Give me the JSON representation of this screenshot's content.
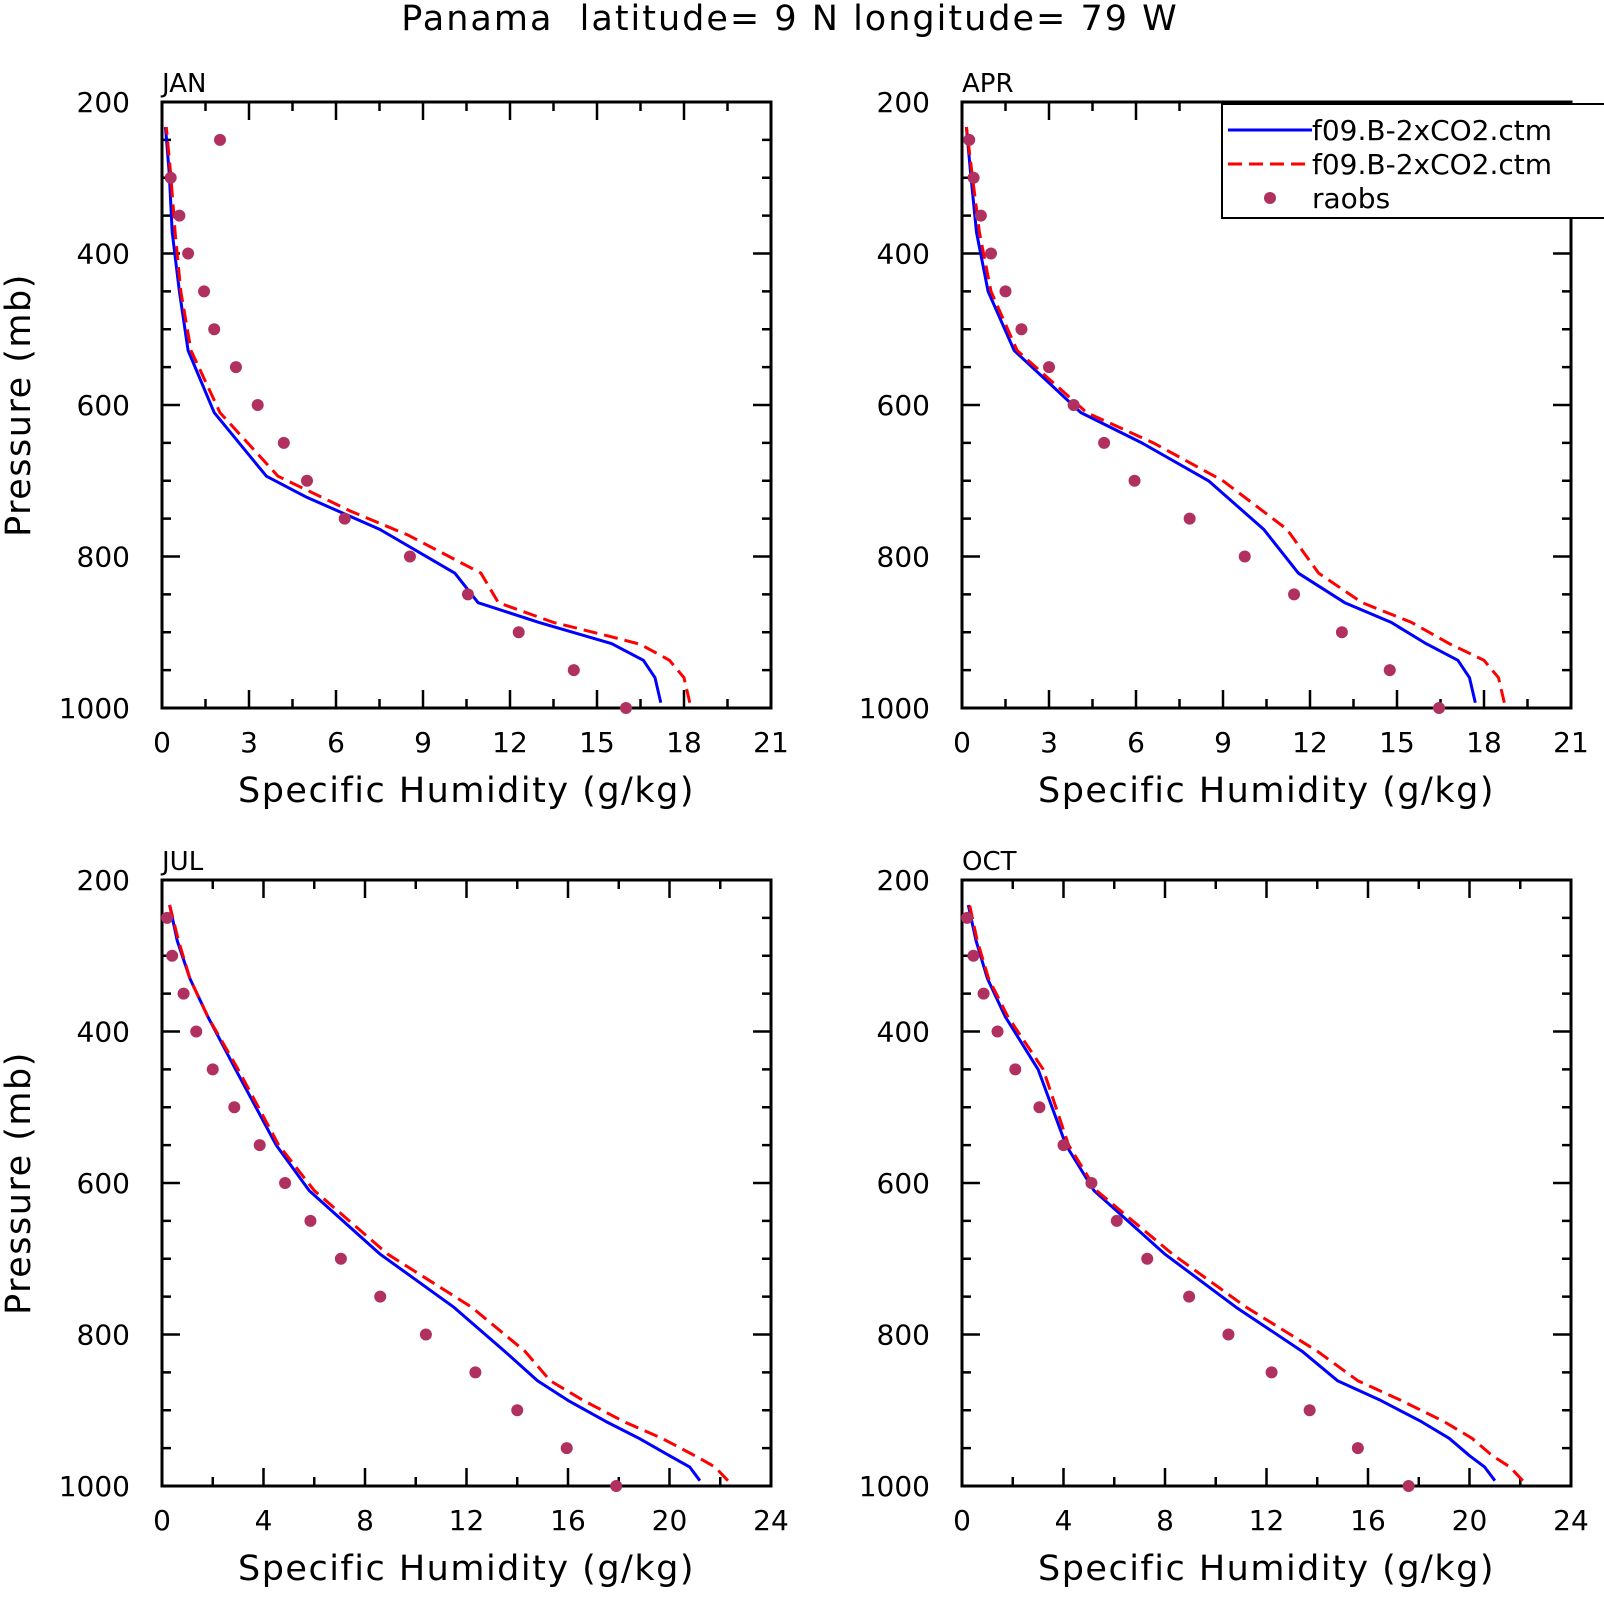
{
  "figure_title": "Panama  latitude= 9 N longitude= 79 W",
  "legend": {
    "entries": [
      {
        "label": "f09.B-2xCO2.ctm",
        "color": "#0000ff",
        "style": "solid"
      },
      {
        "label": "f09.B-2xCO2.ctm",
        "color": "#ff0000",
        "style": "dashed"
      },
      {
        "label": "raobs",
        "color": "#b03060",
        "style": "marker"
      }
    ],
    "placement": "top-right of APR panel"
  },
  "chart_data": [
    {
      "type": "line",
      "title": "JAN",
      "xlabel": "Specific Humidity (g/kg)",
      "ylabel": "Pressure (mb)",
      "xlim": [
        0,
        21
      ],
      "ylim": [
        1000,
        200
      ],
      "xticks": [
        0,
        3,
        6,
        9,
        12,
        15,
        18,
        21
      ],
      "yticks": [
        200,
        400,
        600,
        800,
        1000
      ],
      "series": [
        {
          "color": "#0000ff",
          "style": "solid",
          "x": [
            17.2,
            17.0,
            16.6,
            15.5,
            13.0,
            10.9,
            10.1,
            7.5,
            5.0,
            3.6,
            1.8,
            0.9,
            0.6,
            0.35,
            0.25,
            0.12
          ],
          "y": [
            993,
            960,
            937,
            915,
            887,
            861,
            822,
            764,
            722,
            694,
            610,
            528,
            450,
            372,
            295,
            233
          ]
        },
        {
          "color": "#ff0000",
          "style": "dashed",
          "x": [
            18.2,
            18.0,
            17.5,
            16.5,
            15.5,
            13.5,
            11.6,
            11.0,
            8.5,
            6.5,
            4.0,
            2.0,
            1.0,
            0.65,
            0.45,
            0.3,
            0.15
          ],
          "y": [
            993,
            960,
            937,
            916,
            906,
            887,
            861,
            822,
            772,
            740,
            694,
            610,
            528,
            450,
            372,
            295,
            233
          ]
        },
        {
          "color": "#b03060",
          "style": "marker",
          "x": [
            2.0,
            0.3,
            0.6,
            0.9,
            1.45,
            1.8,
            2.55,
            3.3,
            4.2,
            5.0,
            6.3,
            8.55,
            10.55,
            12.3,
            14.2,
            16.0
          ],
          "y": [
            250,
            300,
            350,
            400,
            450,
            500,
            550,
            600,
            650,
            700,
            750,
            800,
            850,
            900,
            950,
            1000
          ]
        }
      ]
    },
    {
      "type": "line",
      "title": "APR",
      "xlabel": "Specific Humidity (g/kg)",
      "ylabel": "",
      "xlim": [
        0,
        21
      ],
      "ylim": [
        1000,
        200
      ],
      "xticks": [
        0,
        3,
        6,
        9,
        12,
        15,
        18,
        21
      ],
      "yticks": [
        200,
        400,
        600,
        800,
        1000
      ],
      "series": [
        {
          "color": "#0000ff",
          "style": "solid",
          "x": [
            17.7,
            17.5,
            17.1,
            16.0,
            14.8,
            13.2,
            11.6,
            10.4,
            8.5,
            6.2,
            4.1,
            1.8,
            0.9,
            0.5,
            0.3,
            0.15
          ],
          "y": [
            993,
            960,
            937,
            915,
            887,
            861,
            822,
            764,
            700,
            650,
            610,
            528,
            450,
            372,
            295,
            233
          ]
        },
        {
          "color": "#ff0000",
          "style": "dashed",
          "x": [
            18.7,
            18.5,
            18.0,
            16.8,
            15.5,
            13.8,
            12.3,
            11.2,
            9.0,
            6.6,
            4.3,
            1.9,
            1.0,
            0.6,
            0.35,
            0.15
          ],
          "y": [
            993,
            960,
            937,
            915,
            887,
            861,
            822,
            764,
            700,
            650,
            610,
            528,
            450,
            372,
            295,
            233
          ]
        },
        {
          "color": "#b03060",
          "style": "marker",
          "x": [
            0.25,
            0.4,
            0.65,
            1.0,
            1.5,
            2.05,
            3.0,
            3.85,
            4.9,
            5.95,
            7.85,
            9.75,
            11.45,
            13.1,
            14.75,
            16.45
          ],
          "y": [
            250,
            300,
            350,
            400,
            450,
            500,
            550,
            600,
            650,
            700,
            750,
            800,
            850,
            900,
            950,
            1000
          ]
        }
      ]
    },
    {
      "type": "line",
      "title": "JUL",
      "xlabel": "Specific Humidity (g/kg)",
      "ylabel": "Pressure (mb)",
      "xlim": [
        0,
        24
      ],
      "ylim": [
        1000,
        200
      ],
      "xticks": [
        0,
        4,
        8,
        12,
        16,
        20,
        24
      ],
      "yticks": [
        200,
        400,
        600,
        800,
        1000
      ],
      "series": [
        {
          "color": "#0000ff",
          "style": "solid",
          "x": [
            21.2,
            20.8,
            20.0,
            18.8,
            17.5,
            16.0,
            14.8,
            13.5,
            11.5,
            8.6,
            5.8,
            4.5,
            2.9,
            1.8,
            1.1,
            0.6,
            0.3
          ],
          "y": [
            993,
            975,
            960,
            937,
            915,
            887,
            861,
            822,
            764,
            694,
            610,
            550,
            450,
            380,
            330,
            280,
            233
          ]
        },
        {
          "color": "#ff0000",
          "style": "dashed",
          "x": [
            22.3,
            21.8,
            21.0,
            19.7,
            18.2,
            16.6,
            15.3,
            14.3,
            12.2,
            8.9,
            6.0,
            4.6,
            3.0,
            1.8,
            1.1,
            0.65,
            0.3
          ],
          "y": [
            993,
            975,
            960,
            937,
            915,
            887,
            861,
            822,
            764,
            694,
            610,
            550,
            450,
            380,
            330,
            280,
            233
          ]
        },
        {
          "color": "#b03060",
          "style": "marker",
          "x": [
            0.2,
            0.4,
            0.85,
            1.35,
            2.0,
            2.85,
            3.85,
            4.85,
            5.85,
            7.05,
            8.6,
            10.4,
            12.35,
            14.0,
            15.95,
            17.9
          ],
          "y": [
            250,
            300,
            350,
            400,
            450,
            500,
            550,
            600,
            650,
            700,
            750,
            800,
            850,
            900,
            950,
            1000
          ]
        }
      ]
    },
    {
      "type": "line",
      "title": "OCT",
      "xlabel": "Specific Humidity (g/kg)",
      "ylabel": "",
      "xlim": [
        0,
        24
      ],
      "ylim": [
        1000,
        200
      ],
      "xticks": [
        0,
        4,
        8,
        12,
        16,
        20,
        24
      ],
      "yticks": [
        200,
        400,
        600,
        800,
        1000
      ],
      "series": [
        {
          "color": "#0000ff",
          "style": "solid",
          "x": [
            21.0,
            20.6,
            20.0,
            19.2,
            18.1,
            16.5,
            14.8,
            13.4,
            10.8,
            8.0,
            5.2,
            4.1,
            3.0,
            1.7,
            1.0,
            0.55,
            0.25
          ],
          "y": [
            993,
            975,
            960,
            937,
            915,
            887,
            861,
            822,
            764,
            694,
            610,
            550,
            450,
            380,
            330,
            280,
            233
          ]
        },
        {
          "color": "#ff0000",
          "style": "dashed",
          "x": [
            22.1,
            21.6,
            20.9,
            20.1,
            19.0,
            17.3,
            15.6,
            14.0,
            11.2,
            8.3,
            5.3,
            4.2,
            3.2,
            1.8,
            1.05,
            0.6,
            0.3
          ],
          "y": [
            993,
            975,
            960,
            937,
            915,
            887,
            861,
            822,
            764,
            694,
            610,
            550,
            450,
            380,
            330,
            280,
            233
          ]
        },
        {
          "color": "#b03060",
          "style": "marker",
          "x": [
            0.2,
            0.45,
            0.85,
            1.4,
            2.1,
            3.05,
            4.0,
            5.1,
            6.1,
            7.3,
            8.95,
            10.5,
            12.2,
            13.7,
            15.6,
            17.6
          ],
          "y": [
            250,
            300,
            350,
            400,
            450,
            500,
            550,
            600,
            650,
            700,
            750,
            800,
            850,
            900,
            950,
            1000
          ]
        }
      ]
    }
  ]
}
